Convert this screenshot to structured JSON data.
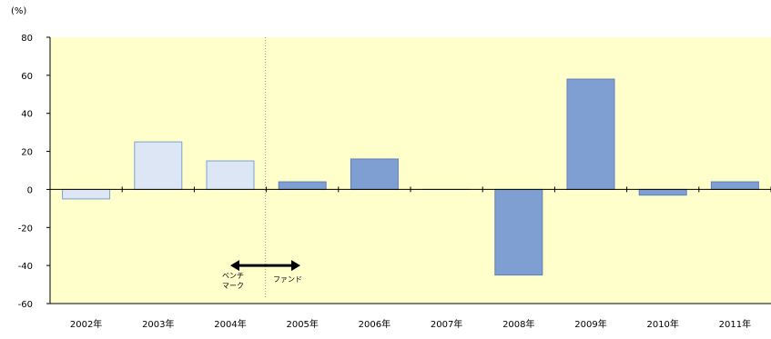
{
  "chart_data": {
    "type": "bar",
    "unit_label": "(%)",
    "categories": [
      "2002年",
      "2003年",
      "2004年",
      "2005年",
      "2006年",
      "2007年",
      "2008年",
      "2009年",
      "2010年",
      "2011年"
    ],
    "values": [
      -5,
      25,
      15,
      4,
      16,
      0,
      -45,
      58,
      -3,
      4
    ],
    "ylim": [
      -60,
      80
    ],
    "yticks": [
      80,
      60,
      40,
      20,
      0,
      -20,
      -40,
      -60
    ],
    "grid": false,
    "colors": {
      "background": "#ffffcc",
      "bar_light_fill": "#dce6f4",
      "bar_light_stroke": "#7f9fd3",
      "bar_dark_fill": "#7f9fd3",
      "bar_dark_stroke": "#5f7fb8",
      "divider": "#999999"
    },
    "light_bar_count": 3,
    "annotation": {
      "left_label_line1": "ベンチ",
      "left_label_line2": "マーク",
      "right_label": "ファンド"
    }
  }
}
